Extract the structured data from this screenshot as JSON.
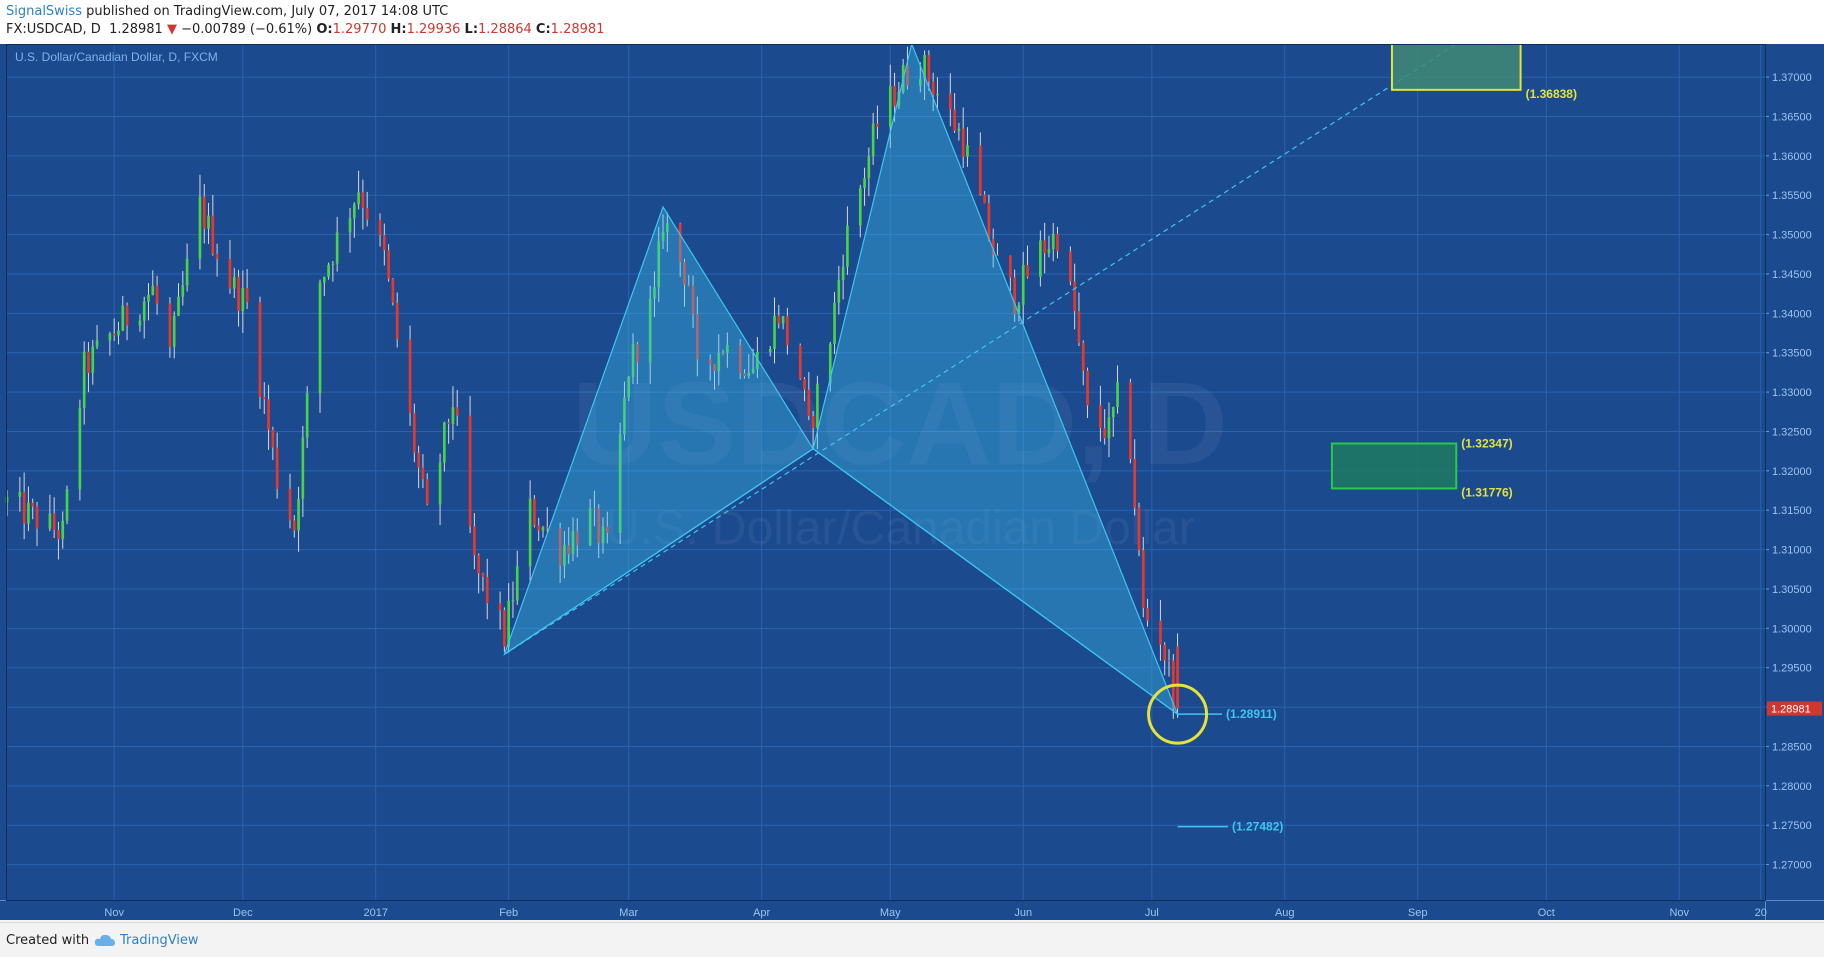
{
  "header": {
    "author": "SignalSwiss",
    "published": "published on TradingView.com, July 07, 2017 14:08 UTC",
    "symbol": "FX:USDCAD, D",
    "last": "1.28981",
    "change_arrow": "▼",
    "change": "−0.00789 (−0.61%)",
    "o_label": "O:",
    "o_value": "1.29770",
    "h_label": "H:",
    "h_value": "1.29936",
    "l_label": "L:",
    "l_value": "1.28864",
    "c_label": "C:",
    "c_value": "1.28981"
  },
  "footer": {
    "created": "Created with",
    "brand": "TradingView"
  },
  "colors": {
    "background": "#1b4a8f",
    "grid": "#2a63b0",
    "bull": "#4ad24a",
    "bear": "#e8372b",
    "pattern": "#3ec6f0",
    "yellow": "#e3e33a",
    "green_box": "#29c94a",
    "price_tag": "#d0372f"
  },
  "chart_data": {
    "type": "candlestick",
    "title": "U.S. Dollar/Canadian Dollar, D, FXCM",
    "watermark_symbol": "USDCAD, D",
    "watermark_name": "U.S. Dollar/Canadian Dollar",
    "y_range": [
      1.2655,
      1.3742
    ],
    "y_ticks": [
      "1.37000",
      "1.36500",
      "1.36000",
      "1.35500",
      "1.35000",
      "1.34500",
      "1.34000",
      "1.33500",
      "1.33000",
      "1.32500",
      "1.32000",
      "1.31500",
      "1.31000",
      "1.30500",
      "1.30000",
      "1.29500",
      "1.29000",
      "1.28500",
      "1.28000",
      "1.27500",
      "1.27000"
    ],
    "x_ticks": [
      {
        "label": "Nov",
        "date": "2016-11-01"
      },
      {
        "label": "Dec",
        "date": "2016-12-01"
      },
      {
        "label": "2017",
        "date": "2017-01-01"
      },
      {
        "label": "Feb",
        "date": "2017-02-01"
      },
      {
        "label": "Mar",
        "date": "2017-03-01"
      },
      {
        "label": "Apr",
        "date": "2017-04-01"
      },
      {
        "label": "May",
        "date": "2017-05-01"
      },
      {
        "label": "Jun",
        "date": "2017-06-01"
      },
      {
        "label": "Jul",
        "date": "2017-07-01"
      },
      {
        "label": "Aug",
        "date": "2017-08-01"
      },
      {
        "label": "Sep",
        "date": "2017-09-01"
      },
      {
        "label": "Oct",
        "date": "2017-10-01"
      },
      {
        "label": "Nov",
        "date": "2017-11-01"
      },
      {
        "label": "20",
        "date": "2017-11-20"
      }
    ],
    "x_range": [
      "2016-10-07",
      "2017-11-21"
    ],
    "price_anchors": [
      [
        "2016-10-07",
        1.316
      ],
      [
        "2016-10-20",
        1.312
      ],
      [
        "2016-10-25",
        1.333
      ],
      [
        "2016-11-03",
        1.339
      ],
      [
        "2016-11-10",
        1.343
      ],
      [
        "2016-11-14",
        1.335
      ],
      [
        "2016-11-21",
        1.3535
      ],
      [
        "2016-11-28",
        1.344
      ],
      [
        "2016-12-02",
        1.341
      ],
      [
        "2016-12-09",
        1.319
      ],
      [
        "2016-12-13",
        1.313
      ],
      [
        "2016-12-19",
        1.344
      ],
      [
        "2016-12-28",
        1.356
      ],
      [
        "2017-01-03",
        1.347
      ],
      [
        "2017-01-10",
        1.323
      ],
      [
        "2017-01-13",
        1.314
      ],
      [
        "2017-01-19",
        1.329
      ],
      [
        "2017-01-24",
        1.308
      ],
      [
        "2017-01-31",
        1.299
      ],
      [
        "2017-02-06",
        1.315
      ],
      [
        "2017-02-13",
        1.31
      ],
      [
        "2017-02-20",
        1.314
      ],
      [
        "2017-02-24",
        1.31
      ],
      [
        "2017-03-01",
        1.333
      ],
      [
        "2017-03-07",
        1.342
      ],
      [
        "2017-03-09",
        1.352
      ],
      [
        "2017-03-15",
        1.344
      ],
      [
        "2017-03-17",
        1.332
      ],
      [
        "2017-03-23",
        1.336
      ],
      [
        "2017-03-30",
        1.333
      ],
      [
        "2017-04-05",
        1.34
      ],
      [
        "2017-04-10",
        1.332
      ],
      [
        "2017-04-12",
        1.325
      ],
      [
        "2017-04-17",
        1.337
      ],
      [
        "2017-04-20",
        1.348
      ],
      [
        "2017-04-25",
        1.358
      ],
      [
        "2017-04-28",
        1.364
      ],
      [
        "2017-05-04",
        1.37
      ],
      [
        "2017-05-08",
        1.372
      ],
      [
        "2017-05-12",
        1.368
      ],
      [
        "2017-05-18",
        1.362
      ],
      [
        "2017-05-24",
        1.35
      ],
      [
        "2017-05-26",
        1.346
      ],
      [
        "2017-05-30",
        1.342
      ],
      [
        "2017-06-05",
        1.348
      ],
      [
        "2017-06-09",
        1.35
      ],
      [
        "2017-06-13",
        1.34
      ],
      [
        "2017-06-16",
        1.327
      ],
      [
        "2017-06-21",
        1.325
      ],
      [
        "2017-06-23",
        1.329
      ],
      [
        "2017-06-26",
        1.323
      ],
      [
        "2017-06-29",
        1.302
      ],
      [
        "2017-07-03",
        1.299
      ],
      [
        "2017-07-07",
        1.2898
      ]
    ],
    "last_price": "1.28981",
    "pattern": {
      "name": "bullish harmonic pattern",
      "points": [
        {
          "date": "2017-01-31",
          "price": 1.2967
        },
        {
          "date": "2017-03-09",
          "price": 1.3535
        },
        {
          "date": "2017-04-13",
          "price": 1.3228
        },
        {
          "date": "2017-05-06",
          "price": 1.3742
        },
        {
          "date": "2017-07-07",
          "price": 1.2891
        }
      ],
      "trendline_extension": {
        "from": "2017-01-31",
        "from_price": 1.2967,
        "to": "2017-09-10",
        "to_price": 1.3742
      }
    },
    "annotations": [
      {
        "label": "(1.28911)",
        "value": 1.28911,
        "color": "pattern"
      },
      {
        "label": "(1.27482)",
        "value": 1.27482,
        "color": "pattern"
      },
      {
        "label": "(1.32347)",
        "value": 1.32347,
        "color": "yellow"
      },
      {
        "label": "(1.31776)",
        "value": 1.31776,
        "color": "yellow"
      },
      {
        "label": "(1.36838)",
        "value": 1.36838,
        "color": "yellow"
      }
    ],
    "target_zones": [
      {
        "from": "2017-08-12",
        "to": "2017-09-10",
        "top": 1.32347,
        "bottom": 1.31776,
        "color": "green_box"
      },
      {
        "from": "2017-08-26",
        "to": "2017-09-25",
        "top": 1.3742,
        "bottom": 1.36838,
        "color": "yellow"
      }
    ],
    "highlight_circle": {
      "date": "2017-07-07",
      "price": 1.2891
    }
  }
}
